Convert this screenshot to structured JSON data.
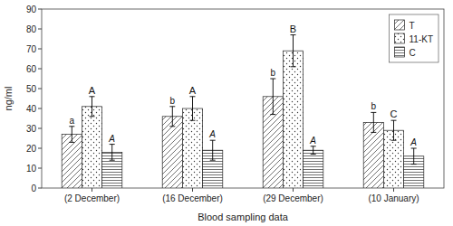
{
  "chart_data": {
    "type": "bar",
    "categories": [
      "(2 December)",
      "(16 December)",
      "(29 December)",
      "(10 January)"
    ],
    "series": [
      {
        "name": "T",
        "color": "#ffffff",
        "values": [
          27,
          36,
          46,
          33
        ],
        "errors": [
          4,
          5,
          9,
          5
        ],
        "annotations": [
          "a",
          "b",
          "b",
          "b"
        ]
      },
      {
        "name": "11-KT",
        "color": "#ffffff",
        "values": [
          41,
          40,
          69,
          29
        ],
        "errors": [
          5,
          6,
          8,
          5
        ],
        "annotations": [
          "A",
          "A",
          "B",
          "C"
        ]
      },
      {
        "name": "C",
        "color": "#ffffff",
        "values": [
          18,
          19,
          19,
          16
        ],
        "errors": [
          4,
          5,
          2,
          4
        ],
        "annotations": [
          "A",
          "A",
          "A",
          "A"
        ]
      }
    ],
    "xlabel": "Blood sampling data",
    "ylabel": "ng/ml",
    "ylim": [
      0,
      90
    ],
    "yticks": [
      0,
      10,
      20,
      30,
      40,
      50,
      60,
      70,
      80,
      90
    ],
    "grid": false,
    "legend": "upper right"
  }
}
